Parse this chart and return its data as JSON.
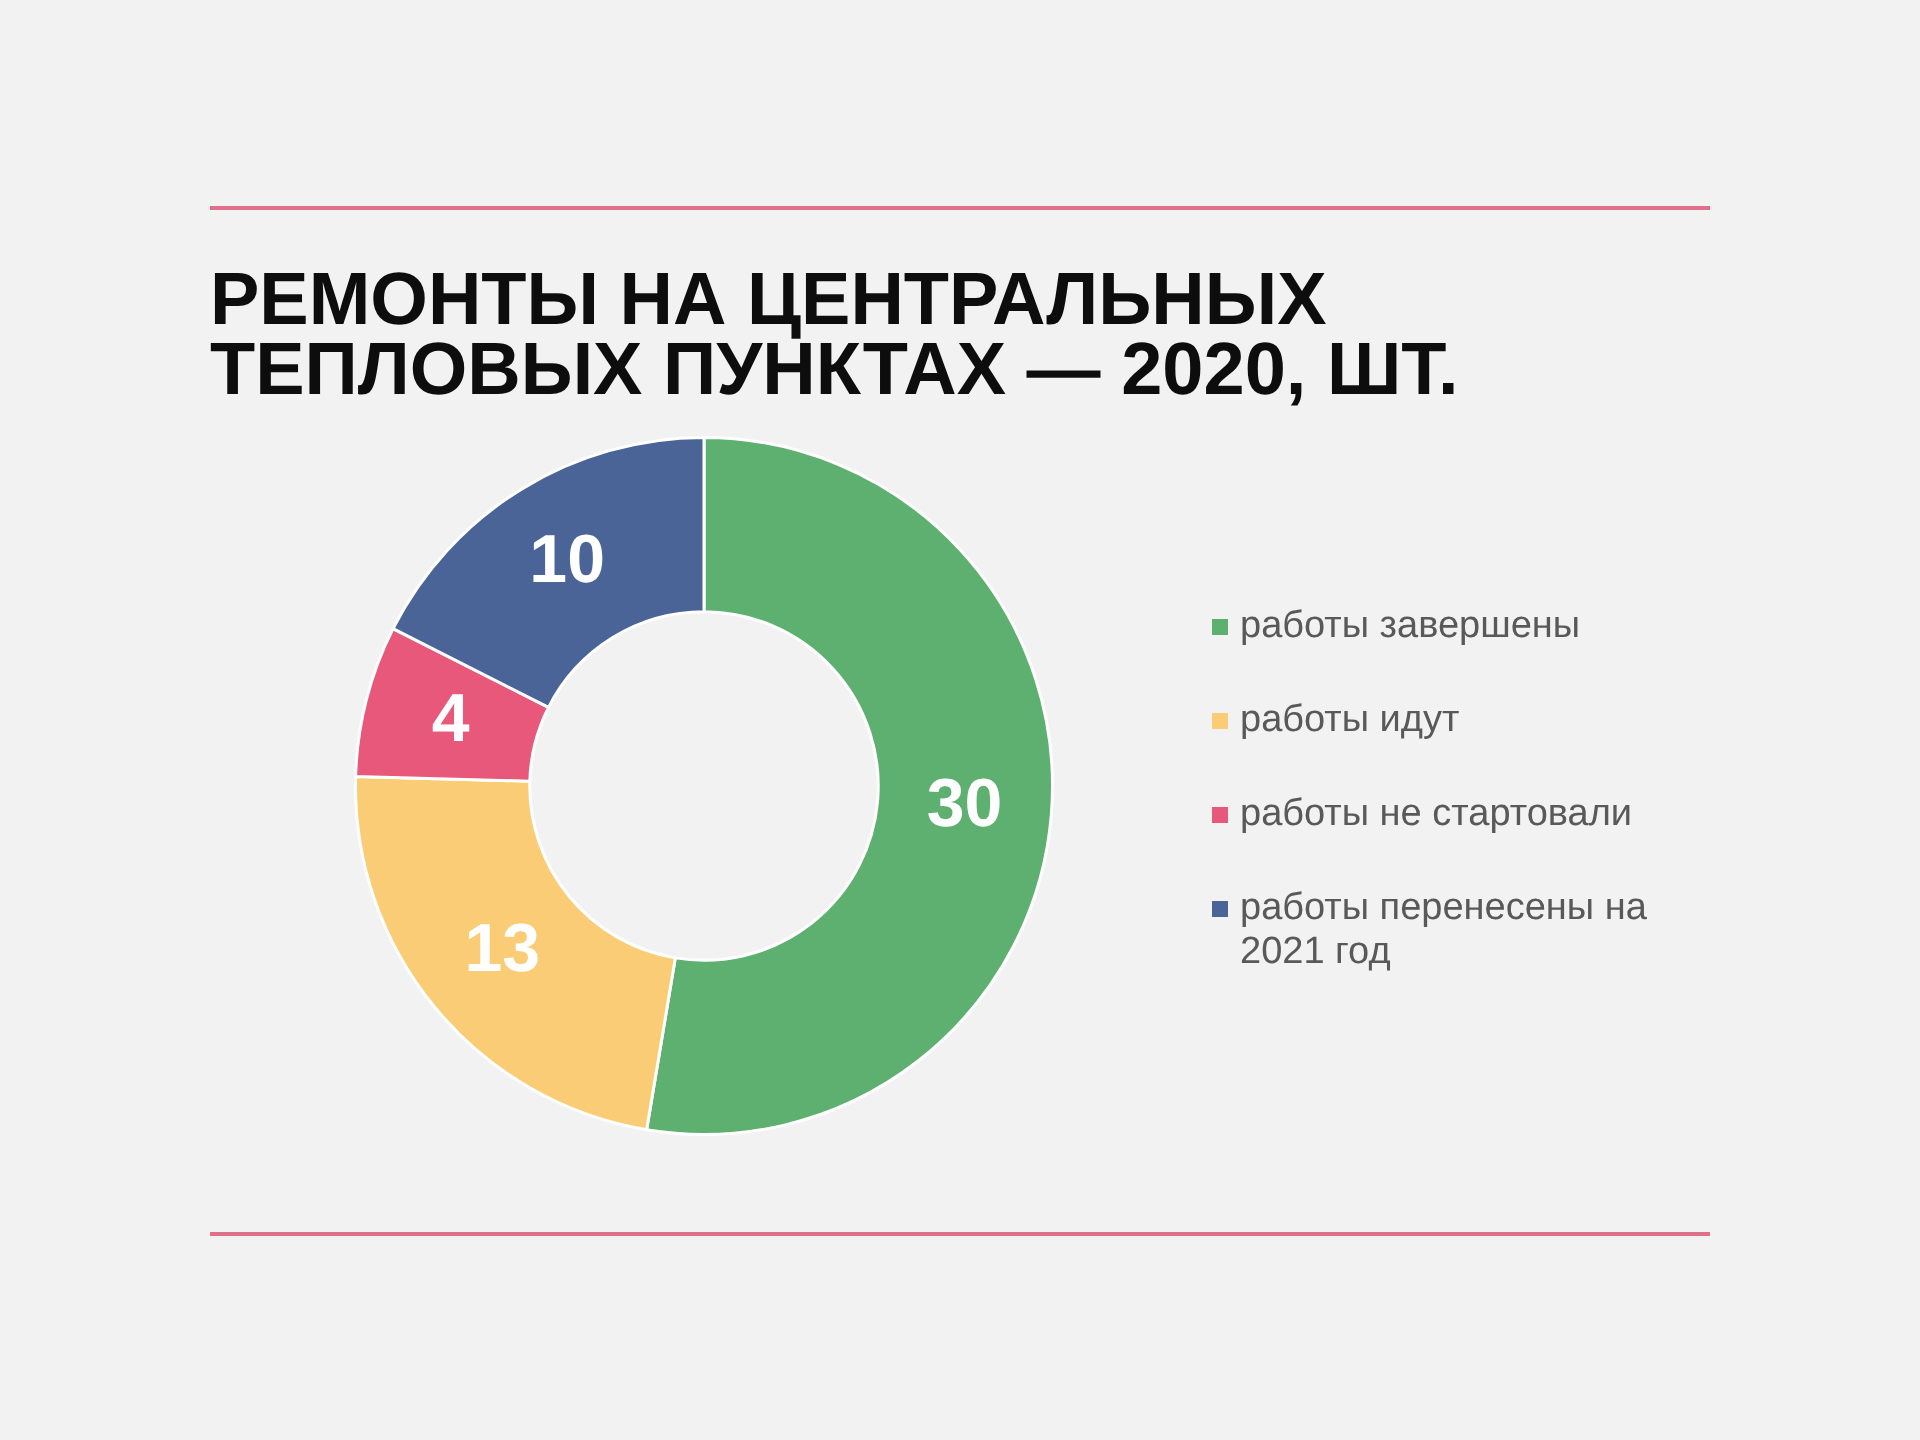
{
  "chart_data": {
    "type": "donut",
    "title": "РЕМОНТЫ НА ЦЕНТРАЛЬНЫХ ТЕПЛОВЫХ ПУНКТАХ — 2020, ШТ.",
    "categories": [
      "работы завершены",
      "работы идут",
      "работы не стартовали",
      "работы перенесены на 2021 год"
    ],
    "values": [
      30,
      13,
      4,
      10
    ],
    "colors": [
      "#5db06f",
      "#fbcc76",
      "#e8587a",
      "#4a6498"
    ],
    "data_labels": true,
    "legend": "right"
  }
}
